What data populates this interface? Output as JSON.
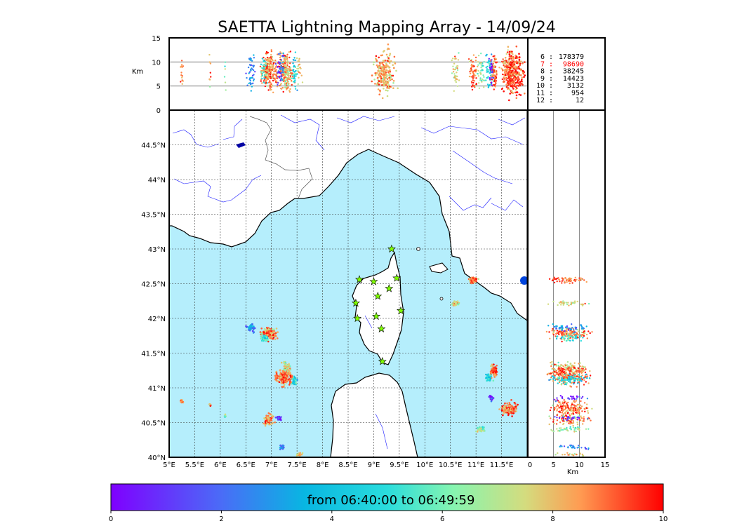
{
  "figure": {
    "title": "SAETTA Lightning Mapping Array - 14/09/24",
    "height_label": "Km",
    "side_label": "Km"
  },
  "colors": {
    "sea": "#b5eefc",
    "land": "#ffffff",
    "rivers": "#1a1aff",
    "station": "#7fff00",
    "highlight": "#ff0000"
  },
  "counts": [
    {
      "label": "6",
      "value": "178379"
    },
    {
      "label": "7",
      "value": "98690",
      "highlight": true
    },
    {
      "label": "8",
      "value": "38245"
    },
    {
      "label": "9",
      "value": "14423"
    },
    {
      "label": "10",
      "value": "3132"
    },
    {
      "label": "11",
      "value": "954"
    },
    {
      "label": "12",
      "value": "12"
    }
  ],
  "colorbar": {
    "label": "from 06:40:00 to 06:49:59",
    "ticks": [
      "0",
      "2",
      "4",
      "6",
      "8",
      "10"
    ]
  },
  "chart_data": {
    "type": "scatter",
    "title": "SAETTA Lightning Mapping Array - 14/09/24",
    "lon_range": [
      5,
      12
    ],
    "lat_range": [
      40,
      45
    ],
    "alt_range_km": [
      0,
      15
    ],
    "time_range_min": [
      0,
      10
    ],
    "lon_ticks": [
      "5°E",
      "5.5°E",
      "6°E",
      "6.5°E",
      "7°E",
      "7.5°E",
      "8°E",
      "8.5°E",
      "9°E",
      "9.5°E",
      "10°E",
      "10.5°E",
      "11°E",
      "11.5°E"
    ],
    "lat_ticks": [
      "40°N",
      "40.5°N",
      "41°N",
      "41.5°N",
      "42°N",
      "42.5°N",
      "43°N",
      "43.5°N",
      "44°N",
      "44.5°N"
    ],
    "alt_ticks": [
      "0",
      "5",
      "10",
      "15"
    ],
    "grid": true,
    "stations": [
      {
        "lon": 9.35,
        "lat": 43.0
      },
      {
        "lon": 8.72,
        "lat": 42.56
      },
      {
        "lon": 9.0,
        "lat": 42.53
      },
      {
        "lon": 9.45,
        "lat": 42.58
      },
      {
        "lon": 9.3,
        "lat": 42.43
      },
      {
        "lon": 9.08,
        "lat": 42.32
      },
      {
        "lon": 8.65,
        "lat": 42.22
      },
      {
        "lon": 9.53,
        "lat": 42.11
      },
      {
        "lon": 8.68,
        "lat": 42.0
      },
      {
        "lon": 9.05,
        "lat": 42.03
      },
      {
        "lon": 9.15,
        "lat": 41.85
      },
      {
        "lon": 9.17,
        "lat": 41.38
      }
    ],
    "cells": [
      {
        "lon": 6.95,
        "lat": 41.78,
        "dlon": 0.22,
        "dlat": 0.12,
        "t": 8.8,
        "n": 160
      },
      {
        "lon": 6.6,
        "lat": 41.86,
        "dlon": 0.12,
        "dlat": 0.08,
        "t": 2.5,
        "n": 50
      },
      {
        "lon": 6.85,
        "lat": 41.72,
        "dlon": 0.1,
        "dlat": 0.08,
        "t": 5.0,
        "n": 40
      },
      {
        "lon": 7.25,
        "lat": 41.15,
        "dlon": 0.25,
        "dlat": 0.16,
        "t": 9.0,
        "n": 170
      },
      {
        "lon": 7.3,
        "lat": 41.3,
        "dlon": 0.12,
        "dlat": 0.1,
        "t": 7.5,
        "n": 60
      },
      {
        "lon": 7.45,
        "lat": 41.1,
        "dlon": 0.1,
        "dlat": 0.08,
        "t": 4.5,
        "n": 40
      },
      {
        "lon": 6.95,
        "lat": 40.55,
        "dlon": 0.14,
        "dlat": 0.12,
        "t": 8.8,
        "n": 80
      },
      {
        "lon": 7.15,
        "lat": 40.56,
        "dlon": 0.08,
        "dlat": 0.05,
        "t": 0.5,
        "n": 25
      },
      {
        "lon": 7.2,
        "lat": 40.15,
        "dlon": 0.06,
        "dlat": 0.05,
        "t": 2.5,
        "n": 25
      },
      {
        "lon": 7.55,
        "lat": 40.04,
        "dlon": 0.07,
        "dlat": 0.03,
        "t": 8.0,
        "n": 20
      },
      {
        "lon": 5.25,
        "lat": 40.8,
        "dlon": 0.05,
        "dlat": 0.04,
        "t": 8.5,
        "n": 14
      },
      {
        "lon": 5.8,
        "lat": 40.75,
        "dlon": 0.03,
        "dlat": 0.02,
        "t": 8.5,
        "n": 8
      },
      {
        "lon": 6.1,
        "lat": 40.6,
        "dlon": 0.05,
        "dlat": 0.04,
        "t": 6.0,
        "n": 6
      },
      {
        "lon": 10.95,
        "lat": 42.55,
        "dlon": 0.12,
        "dlat": 0.06,
        "t": 9.0,
        "n": 60
      },
      {
        "lon": 10.6,
        "lat": 42.22,
        "dlon": 0.1,
        "dlat": 0.05,
        "t": 7.5,
        "n": 40
      },
      {
        "lon": 11.35,
        "lat": 41.25,
        "dlon": 0.1,
        "dlat": 0.14,
        "t": 9.0,
        "n": 90
      },
      {
        "lon": 11.25,
        "lat": 41.15,
        "dlon": 0.1,
        "dlat": 0.08,
        "t": 4.5,
        "n": 40
      },
      {
        "lon": 11.65,
        "lat": 40.7,
        "dlon": 0.22,
        "dlat": 0.14,
        "t": 9.0,
        "n": 130
      },
      {
        "lon": 11.3,
        "lat": 40.85,
        "dlon": 0.06,
        "dlat": 0.06,
        "t": 0.8,
        "n": 25
      },
      {
        "lon": 11.1,
        "lat": 40.4,
        "dlon": 0.12,
        "dlat": 0.06,
        "t": 6.5,
        "n": 40
      }
    ]
  }
}
